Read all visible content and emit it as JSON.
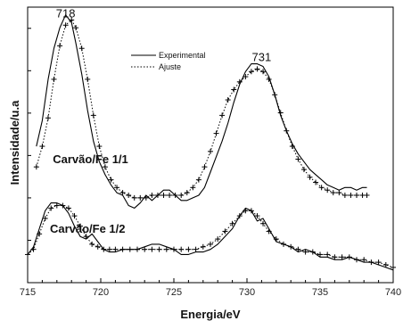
{
  "chart_data": {
    "type": "line",
    "xlabel": "Energia/eV",
    "ylabel": "Intensidade/u.a",
    "xlim": [
      715,
      740
    ],
    "ylim": [
      0,
      1
    ],
    "xticks": [
      715,
      720,
      725,
      730,
      735,
      740
    ],
    "grid": false,
    "legend": {
      "placement": "top-center",
      "entries": [
        {
          "label": "Experimental",
          "style": "solid"
        },
        {
          "label": "Ajuste",
          "style": "dotted-plus"
        }
      ]
    },
    "annotations": [
      {
        "text": "718",
        "x": 717.6,
        "y": 0.96
      },
      {
        "text": "731",
        "x": 731.0,
        "y": 0.79
      },
      {
        "text": "Carvão/Fe 1/1",
        "x": 719.3,
        "y": 0.395,
        "bold": true
      },
      {
        "text": "Carvão/Fe 1/2",
        "x": 719.1,
        "y": 0.125,
        "bold": true
      }
    ],
    "series": [
      {
        "name": "Experimental",
        "group": "Carvão/Fe 1/1",
        "style": "solid",
        "x": [
          715.6,
          716.0,
          716.4,
          716.8,
          717.2,
          717.6,
          718.0,
          718.3,
          718.7,
          719.1,
          719.5,
          719.9,
          720.3,
          720.7,
          721.1,
          721.5,
          721.9,
          722.3,
          722.7,
          723.1,
          723.5,
          723.9,
          724.3,
          724.7,
          725.1,
          725.5,
          725.9,
          726.3,
          726.7,
          727.1,
          727.5,
          727.9,
          728.3,
          728.7,
          729.1,
          729.5,
          729.9,
          730.3,
          730.7,
          731.1,
          731.5,
          731.9,
          732.3,
          732.7,
          733.1,
          733.5,
          733.9,
          734.3,
          734.7,
          735.1,
          735.5,
          735.9,
          736.3,
          736.7,
          737.1,
          737.5,
          737.9,
          738.2
        ],
        "y": [
          0.46,
          0.56,
          0.72,
          0.84,
          0.92,
          0.97,
          0.94,
          0.86,
          0.74,
          0.6,
          0.48,
          0.4,
          0.35,
          0.31,
          0.28,
          0.27,
          0.23,
          0.22,
          0.24,
          0.27,
          0.25,
          0.27,
          0.29,
          0.29,
          0.27,
          0.25,
          0.25,
          0.26,
          0.27,
          0.3,
          0.36,
          0.42,
          0.48,
          0.55,
          0.63,
          0.7,
          0.75,
          0.78,
          0.78,
          0.77,
          0.73,
          0.66,
          0.58,
          0.52,
          0.47,
          0.43,
          0.4,
          0.37,
          0.35,
          0.33,
          0.31,
          0.3,
          0.29,
          0.3,
          0.3,
          0.29,
          0.3,
          0.3
        ]
      },
      {
        "name": "Ajuste",
        "group": "Carvão/Fe 1/1",
        "style": "dotted-plus",
        "x": [
          715.6,
          716.0,
          716.4,
          716.8,
          717.2,
          717.6,
          718.0,
          718.3,
          718.7,
          719.1,
          719.5,
          719.9,
          720.3,
          720.7,
          721.1,
          721.5,
          721.9,
          722.3,
          722.7,
          723.1,
          723.5,
          723.9,
          724.3,
          724.7,
          725.1,
          725.5,
          725.9,
          726.3,
          726.7,
          727.1,
          727.5,
          727.9,
          728.3,
          728.7,
          729.1,
          729.5,
          729.9,
          730.3,
          730.7,
          731.1,
          731.5,
          731.9,
          732.3,
          732.7,
          733.1,
          733.5,
          733.9,
          734.3,
          734.7,
          735.1,
          735.5,
          735.9,
          736.3,
          736.7,
          737.1,
          737.5,
          737.9,
          738.2
        ],
        "y": [
          0.38,
          0.46,
          0.57,
          0.72,
          0.85,
          0.93,
          0.95,
          0.92,
          0.84,
          0.72,
          0.58,
          0.46,
          0.38,
          0.33,
          0.3,
          0.28,
          0.27,
          0.26,
          0.26,
          0.26,
          0.27,
          0.27,
          0.27,
          0.27,
          0.27,
          0.27,
          0.28,
          0.3,
          0.33,
          0.38,
          0.44,
          0.51,
          0.58,
          0.64,
          0.68,
          0.71,
          0.73,
          0.75,
          0.76,
          0.75,
          0.72,
          0.66,
          0.59,
          0.52,
          0.46,
          0.41,
          0.37,
          0.34,
          0.32,
          0.3,
          0.29,
          0.28,
          0.28,
          0.27,
          0.27,
          0.27,
          0.27,
          0.27
        ]
      },
      {
        "name": "Experimental",
        "group": "Carvão/Fe 1/2",
        "style": "solid",
        "x": [
          715.0,
          715.4,
          715.8,
          716.2,
          716.6,
          717.0,
          717.4,
          717.8,
          718.2,
          718.6,
          719.0,
          719.4,
          719.8,
          720.2,
          720.6,
          721.0,
          721.5,
          722.0,
          722.5,
          723.0,
          723.5,
          724.0,
          724.5,
          725.0,
          725.5,
          726.0,
          726.5,
          727.0,
          727.5,
          728.0,
          728.5,
          729.0,
          729.5,
          729.9,
          730.3,
          730.7,
          731.1,
          731.5,
          732.0,
          732.5,
          733.0,
          733.5,
          734.0,
          734.5,
          735.0,
          735.5,
          736.0,
          736.5,
          737.0,
          737.5,
          738.0,
          738.5,
          739.0,
          739.5,
          740.0
        ],
        "y": [
          0.04,
          0.07,
          0.14,
          0.21,
          0.24,
          0.24,
          0.23,
          0.2,
          0.15,
          0.11,
          0.1,
          0.12,
          0.09,
          0.06,
          0.05,
          0.05,
          0.06,
          0.06,
          0.06,
          0.07,
          0.08,
          0.08,
          0.07,
          0.06,
          0.04,
          0.04,
          0.05,
          0.05,
          0.06,
          0.08,
          0.11,
          0.14,
          0.19,
          0.22,
          0.21,
          0.17,
          0.18,
          0.14,
          0.09,
          0.08,
          0.07,
          0.05,
          0.06,
          0.05,
          0.03,
          0.03,
          0.02,
          0.02,
          0.03,
          0.02,
          0.01,
          0.01,
          0.0,
          -0.01,
          -0.02
        ]
      },
      {
        "name": "Ajuste",
        "group": "Carvão/Fe 1/2",
        "style": "dotted-plus",
        "x": [
          715.0,
          715.4,
          715.8,
          716.2,
          716.6,
          717.0,
          717.4,
          717.8,
          718.2,
          718.6,
          719.0,
          719.4,
          719.8,
          720.2,
          720.6,
          721.0,
          721.5,
          722.0,
          722.5,
          723.0,
          723.5,
          724.0,
          724.5,
          725.0,
          725.5,
          726.0,
          726.5,
          727.0,
          727.5,
          728.0,
          728.5,
          729.0,
          729.5,
          729.9,
          730.3,
          730.7,
          731.1,
          731.5,
          732.0,
          732.5,
          733.0,
          733.5,
          734.0,
          734.5,
          735.0,
          735.5,
          736.0,
          736.5,
          737.0,
          737.5,
          738.0,
          738.5,
          739.0,
          739.5,
          740.0
        ],
        "y": [
          0.04,
          0.06,
          0.12,
          0.18,
          0.22,
          0.23,
          0.23,
          0.22,
          0.19,
          0.15,
          0.11,
          0.08,
          0.07,
          0.06,
          0.06,
          0.06,
          0.06,
          0.06,
          0.06,
          0.06,
          0.06,
          0.06,
          0.06,
          0.06,
          0.06,
          0.06,
          0.06,
          0.07,
          0.08,
          0.1,
          0.13,
          0.16,
          0.19,
          0.21,
          0.21,
          0.19,
          0.16,
          0.13,
          0.1,
          0.08,
          0.07,
          0.06,
          0.05,
          0.05,
          0.04,
          0.04,
          0.03,
          0.03,
          0.03,
          0.02,
          0.02,
          0.01,
          0.01,
          0.0,
          -0.01
        ]
      }
    ]
  }
}
